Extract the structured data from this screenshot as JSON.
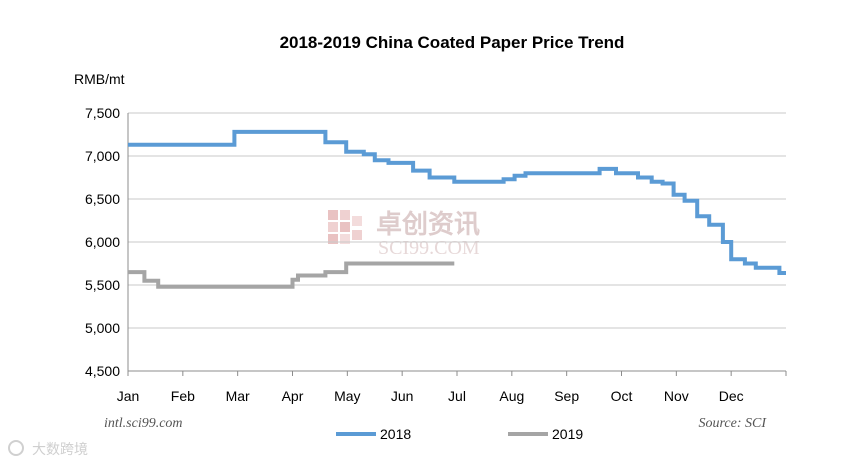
{
  "chart_data": {
    "type": "line",
    "title": "2018-2019 China Coated Paper Price Trend",
    "ylabel": "RMB/mt",
    "xlabel": "",
    "ylim": [
      4500,
      7500
    ],
    "y_ticks": [
      "4,500",
      "5,000",
      "5,500",
      "6,000",
      "6,500",
      "7,000",
      "7,500"
    ],
    "y_tick_values": [
      4500,
      5000,
      5500,
      6000,
      6500,
      7000,
      7500
    ],
    "categories": [
      "Jan",
      "Feb",
      "Mar",
      "Apr",
      "May",
      "Jun",
      "Jul",
      "Aug",
      "Sep",
      "Oct",
      "Nov",
      "Dec"
    ],
    "x_domain": [
      0,
      12
    ],
    "series": [
      {
        "name": "2018",
        "color": "#5b9bd5",
        "points": [
          [
            0,
            7130
          ],
          [
            1.94,
            7130
          ],
          [
            1.94,
            7280
          ],
          [
            3.6,
            7280
          ],
          [
            3.6,
            7160
          ],
          [
            3.98,
            7160
          ],
          [
            3.98,
            7050
          ],
          [
            4.3,
            7050
          ],
          [
            4.3,
            7020
          ],
          [
            4.5,
            7020
          ],
          [
            4.5,
            6950
          ],
          [
            4.75,
            6950
          ],
          [
            4.75,
            6920
          ],
          [
            5.2,
            6920
          ],
          [
            5.2,
            6830
          ],
          [
            5.5,
            6830
          ],
          [
            5.5,
            6750
          ],
          [
            5.95,
            6750
          ],
          [
            5.95,
            6700
          ],
          [
            6.85,
            6700
          ],
          [
            6.85,
            6730
          ],
          [
            7.05,
            6730
          ],
          [
            7.05,
            6770
          ],
          [
            7.25,
            6770
          ],
          [
            7.25,
            6800
          ],
          [
            8.6,
            6800
          ],
          [
            8.6,
            6850
          ],
          [
            8.9,
            6850
          ],
          [
            8.9,
            6800
          ],
          [
            9.3,
            6800
          ],
          [
            9.3,
            6750
          ],
          [
            9.55,
            6750
          ],
          [
            9.55,
            6700
          ],
          [
            9.75,
            6700
          ],
          [
            9.75,
            6680
          ],
          [
            9.95,
            6680
          ],
          [
            9.95,
            6550
          ],
          [
            10.15,
            6550
          ],
          [
            10.15,
            6480
          ],
          [
            10.38,
            6480
          ],
          [
            10.38,
            6300
          ],
          [
            10.6,
            6300
          ],
          [
            10.6,
            6200
          ],
          [
            10.85,
            6200
          ],
          [
            10.85,
            6000
          ],
          [
            11.0,
            6000
          ],
          [
            11.0,
            5800
          ],
          [
            11.25,
            5800
          ],
          [
            11.25,
            5750
          ],
          [
            11.45,
            5750
          ],
          [
            11.45,
            5700
          ],
          [
            11.88,
            5700
          ],
          [
            11.88,
            5640
          ],
          [
            12,
            5640
          ]
        ]
      },
      {
        "name": "2019",
        "color": "#a5a5a5",
        "points": [
          [
            0,
            5650
          ],
          [
            0.3,
            5650
          ],
          [
            0.3,
            5550
          ],
          [
            0.55,
            5550
          ],
          [
            0.55,
            5480
          ],
          [
            3.0,
            5480
          ],
          [
            3.0,
            5560
          ],
          [
            3.1,
            5560
          ],
          [
            3.1,
            5610
          ],
          [
            3.6,
            5610
          ],
          [
            3.6,
            5650
          ],
          [
            3.98,
            5650
          ],
          [
            3.98,
            5750
          ],
          [
            5.95,
            5750
          ]
        ]
      }
    ],
    "legend_position": "bottom-center",
    "grid": true
  },
  "footer": {
    "source_left": "intl.sci99.com",
    "source_right": "Source: SCI"
  },
  "watermark": {
    "cn_text": "卓创资讯",
    "en_text": "SCI99.COM",
    "corner_text": "大数跨境"
  }
}
